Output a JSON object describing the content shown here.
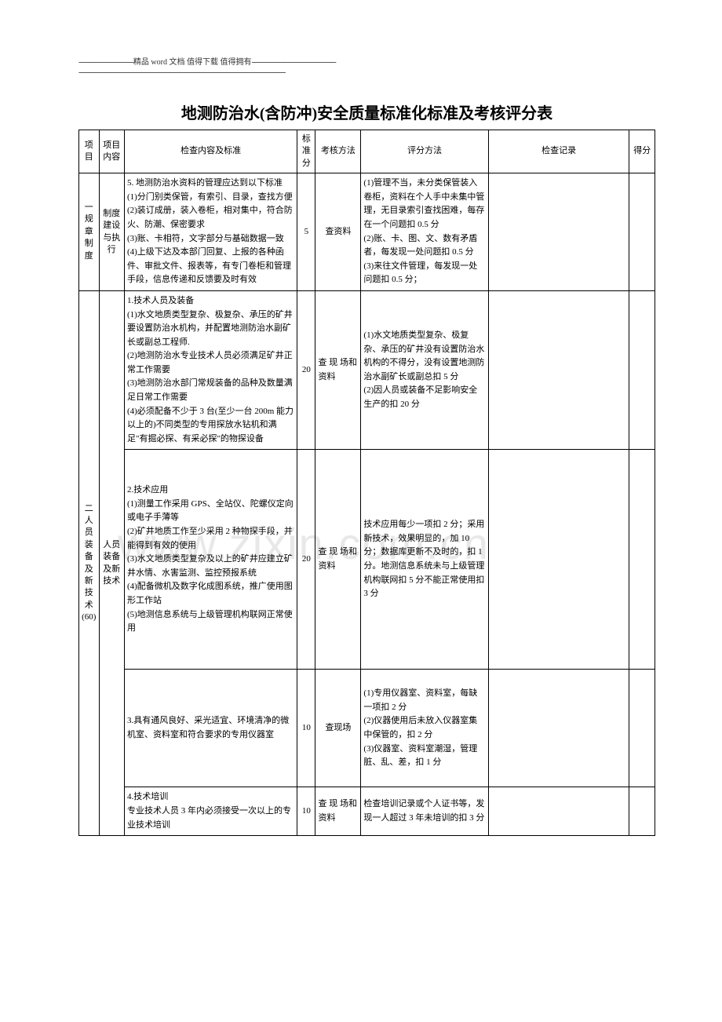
{
  "header": {
    "line1_pre": "------------------------------",
    "line1_mid": "精品 word 文档  值得下载  值得拥有",
    "line1_post": "----------------------------------------------",
    "line2": "-----------------------------------------------------------------------------------------------------------------"
  },
  "title": "地测防治水(含防冲)安全质量标准化标准及考核评分表",
  "watermark": "www.zixin.com.cn",
  "columns": {
    "c1": "项目",
    "c2": "项目内容",
    "c3": "检查内容及标准",
    "c4": "标准分",
    "c5": "考核方法",
    "c6": "评分方法",
    "c7": "检查记录",
    "c8": "得分"
  },
  "rows": [
    {
      "proj": "一规章制度",
      "item": "制度建设与执行",
      "content": "5. 地测防治水资料的管理应达到以下标准\n(1)分门别类保管，有索引、目录，查找方便\n(2)装订成册，装入卷柜，相对集中，符合防火、防潮、保密要求\n(3)账、卡相符，文字部分与基础数据一致\n(4)上级下达及本部门回复、上报的各种函件、审批文件、报表等，有专门卷柜和管理手段，信息传递和反馈要及时有效",
      "score": "5",
      "method": "查资料",
      "scoring": "(1)管理不当，未分类保管装入卷柜，资料在个人手中未集中管理，无目录索引查找困难，每存在一个问题扣 0.5 分\n(2)账、卡、图、文、数有矛盾者，每发现一处问题扣 0.5 分\n(3)来往文件管理，每发现一处问题扣 0.5 分；",
      "record": "",
      "points": "",
      "proj_rowspan": 1,
      "item_rowspan": 1
    },
    {
      "proj": "二人员装备及新技术(60)",
      "item": "人员装备及新技术",
      "content": "1.技术人员及装备\n(1)水文地质类型复杂、极复杂、承压的矿井要设置防治水机构，并配置地测防治水副矿长或副总工程师.\n(2)地测防治水专业技术人员必须满足矿井正常工作需要\n(3)地测防治水部门常规装备的品种及数量满足日常工作需要\n(4)必须配备不少于 3 台(至少一台 200m 能力以上的)不同类型的专用探放水钻机和满足\"有掘必探、有采必探\"的物探设备",
      "score": "20",
      "method": "查 现 场和资料",
      "scoring": "(1)水文地质类型复杂、极复杂、承压的矿井没有设置防治水机构的不得分，没有设置地测防治水副矿长或副总扣 5 分\n(2)因人员或装备不足影响安全生产的扣 20 分",
      "record": "",
      "points": "",
      "proj_rowspan": 4,
      "item_rowspan": 4
    },
    {
      "content": "2.技术应用\n(1)测量工作采用 GPS、全站仪、陀螺仪定向或电子手薄等\n(2)矿井地质工作至少采用 2 种物探手段，并能得到有效的使用\n(3)水文地质类型复杂及以上的矿井应建立矿井水情、水害监测、监控预报系统\n(4)配备微机及数字化成图系统，推广使用图形工作站\n(5)地测信息系统与上级管理机构联网正常使用",
      "score": "20",
      "method": "查 现 场和资料",
      "scoring": "技术应用每少一项扣 2 分；采用新技术，效果明显的，加 10 分；数据库更新不及时的，扣 1 分。地测信息系统未与上级管理机构联网扣 5 分不能正常使用扣 3 分",
      "record": "",
      "points": ""
    },
    {
      "content": "3.具有通风良好、采光适宜、环境清净的微机室、资料室和符合要求的专用仪器室",
      "score": "10",
      "method": "查现场",
      "scoring": "(1)专用仪器室、资料室，每缺一项扣 2 分\n(2)仪器使用后未放入仪器室集中保管的，扣 2 分\n(3)仪器室、资料室潮湿，管理脏、乱、差，扣 1 分",
      "record": "",
      "points": ""
    },
    {
      "content": "4.技术培训\n专业技术人员 3 年内必须接受一次以上的专业技术培训",
      "score": "10",
      "method": "查 现 场和资料",
      "scoring": "检查培训记录或个人证书等，发现一人超过 3 年未培训的扣 3 分",
      "record": "",
      "points": ""
    }
  ]
}
